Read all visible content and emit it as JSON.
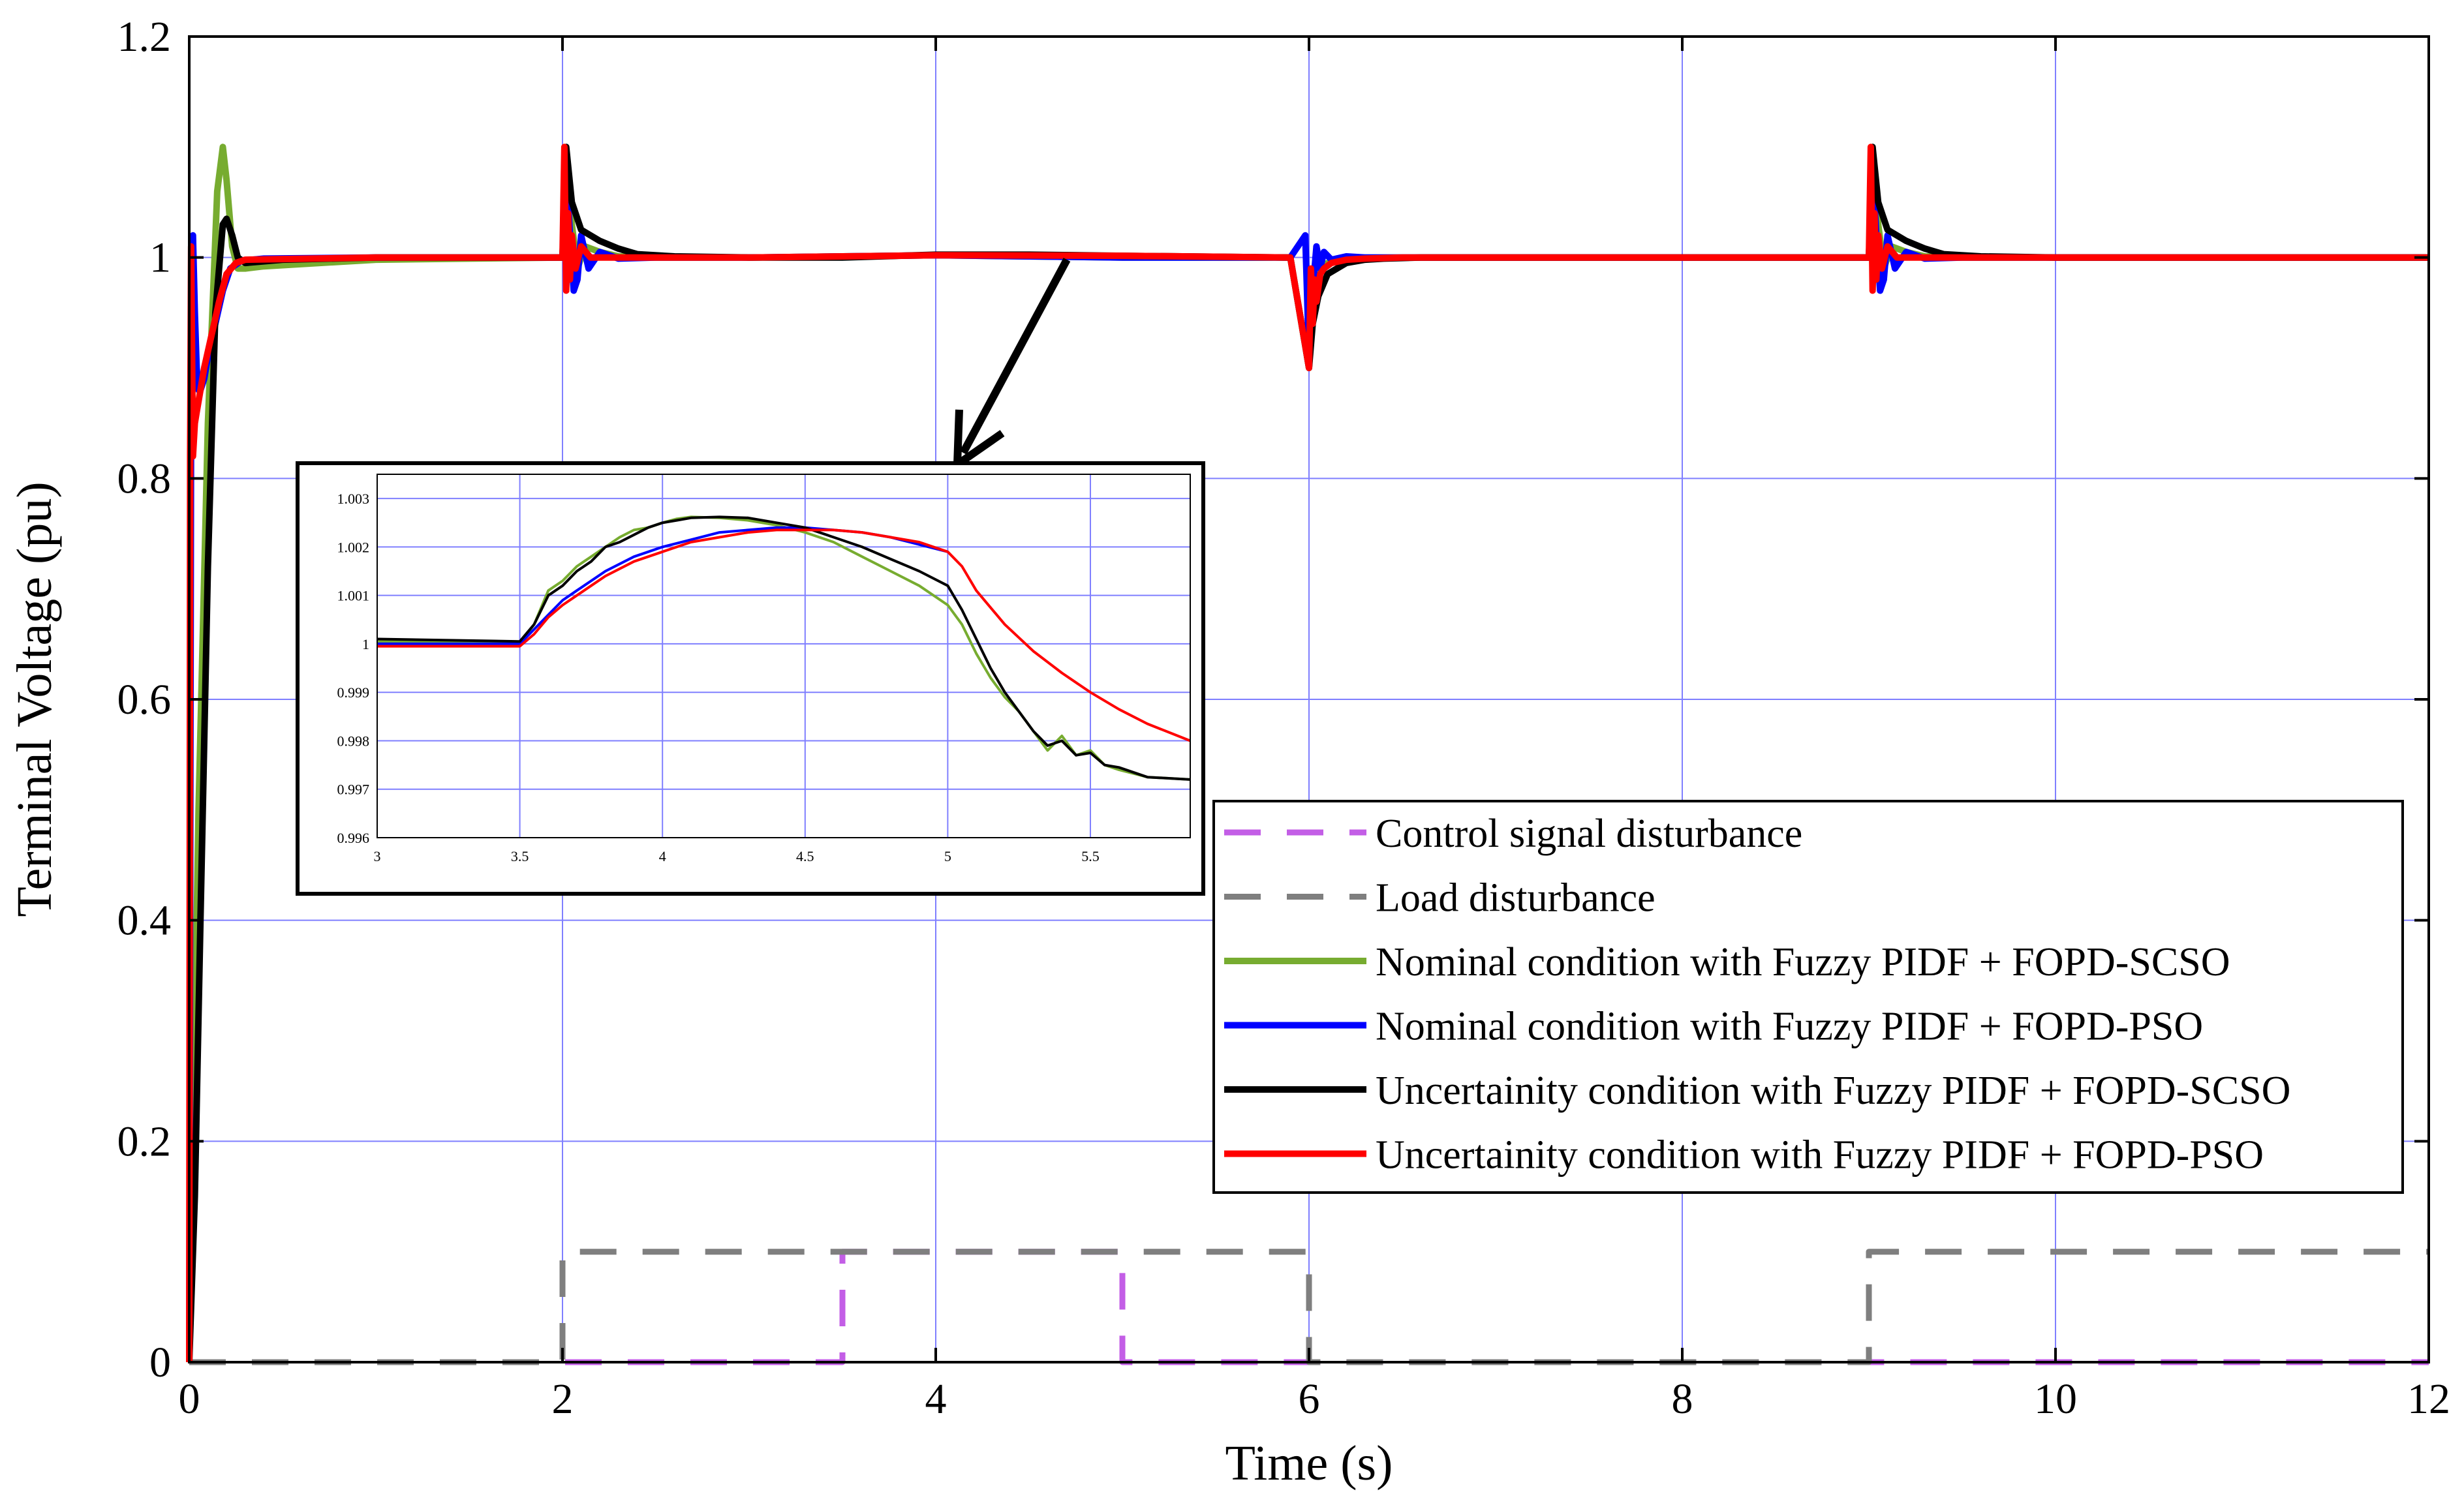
{
  "chart_data": {
    "type": "line",
    "xlabel": "Time (s)",
    "ylabel": "Terminal Voltage (pu)",
    "xlim": [
      0,
      12
    ],
    "ylim": [
      0,
      1.2
    ],
    "xticks": [
      0,
      2,
      4,
      6,
      8,
      10,
      12
    ],
    "xtick_labels": [
      "0",
      "2",
      "4",
      "6",
      "8",
      "10",
      "12"
    ],
    "yticks": [
      0,
      0.2,
      0.4,
      0.6,
      0.8,
      1,
      1.2
    ],
    "ytick_labels": [
      "0",
      "0.2",
      "0.4",
      "0.6",
      "0.8",
      "1",
      "1.2"
    ],
    "grid": true,
    "legend_position": "center-right",
    "series": [
      {
        "name": "Control  signal disturbance",
        "color": "#c35ee6",
        "style": "dashed",
        "x": [
          0,
          2,
          2,
          3.5,
          3.5,
          5,
          5,
          6,
          6,
          12
        ],
        "y": [
          0,
          0,
          0,
          0,
          0.1,
          0.1,
          0,
          0,
          0,
          0
        ]
      },
      {
        "name": "Load disturbance",
        "color": "#7f7f7f",
        "style": "dashed",
        "x": [
          0,
          2,
          2,
          6,
          6,
          9,
          9,
          12
        ],
        "y": [
          0,
          0,
          0.1,
          0.1,
          0,
          0,
          0.1,
          0.1
        ]
      },
      {
        "name": "Nominal condition with Fuzzy PIDF + FOPD-SCSO",
        "color": "#77ac30",
        "style": "solid",
        "x": [
          0,
          0.02,
          0.05,
          0.1,
          0.15,
          0.18,
          0.2,
          0.23,
          0.26,
          0.3,
          0.4,
          1,
          2,
          2.02,
          2.05,
          2.08,
          2.12,
          2.2,
          2.3,
          2.5,
          3,
          4,
          5,
          5.9,
          6,
          6.02,
          6.05,
          6.1,
          6.15,
          6.2,
          6.3,
          6.5,
          7,
          8,
          9,
          9.02,
          9.05,
          9.08,
          9.12,
          9.2,
          9.3,
          9.5,
          10,
          12
        ],
        "y": [
          0,
          0.2,
          0.5,
          0.85,
          1.06,
          1.1,
          1.07,
          1.01,
          0.99,
          0.99,
          0.992,
          0.998,
          1,
          1.09,
          1.03,
          0.99,
          1.01,
          1.005,
          1.001,
          1,
          1,
          1.002,
          1,
          1,
          0.9,
          0.96,
          0.985,
          0.995,
          0.999,
          1,
          1,
          1,
          1,
          1,
          1,
          1.09,
          1.03,
          0.99,
          1.01,
          1.005,
          1.001,
          1,
          1,
          1
        ]
      },
      {
        "name": "Nominal condition with Fuzzy PIDF + FOPD-PSO",
        "color": "#0000ff",
        "style": "solid",
        "x": [
          0,
          0.01,
          0.02,
          0.03,
          0.04,
          0.05,
          0.06,
          0.08,
          0.1,
          0.14,
          0.18,
          0.22,
          0.28,
          0.4,
          1,
          2,
          2.02,
          2.04,
          2.06,
          2.08,
          2.1,
          2.14,
          2.2,
          2.3,
          2.5,
          3,
          4,
          5,
          5.9,
          5.98,
          6,
          6.02,
          6.04,
          6.06,
          6.08,
          6.12,
          6.2,
          6.3,
          6.5,
          7,
          8,
          9,
          9.02,
          9.04,
          9.06,
          9.08,
          9.1,
          9.14,
          9.2,
          9.3,
          9.5,
          10,
          12
        ],
        "y": [
          0,
          0.88,
          1.02,
          0.95,
          0.9,
          0.88,
          0.88,
          0.89,
          0.91,
          0.94,
          0.97,
          0.99,
          0.997,
          0.999,
          1,
          1,
          1.08,
          1.02,
          0.97,
          0.98,
          1.02,
          0.99,
          1.005,
          0.999,
          1,
          1,
          1.002,
          1,
          1,
          1.02,
          0.91,
          0.97,
          1.01,
          0.99,
          1.005,
          0.998,
          1.001,
          1,
          1,
          1,
          1,
          1,
          1.08,
          1.02,
          0.97,
          0.98,
          1.02,
          0.99,
          1.005,
          0.999,
          1,
          1,
          1
        ]
      },
      {
        "name": "Uncertainity condition with Fuzzy PIDF + FOPD-SCSO",
        "color": "#000000",
        "style": "solid",
        "x": [
          0,
          0.03,
          0.06,
          0.1,
          0.14,
          0.18,
          0.2,
          0.23,
          0.26,
          0.3,
          0.5,
          1,
          2,
          2.02,
          2.05,
          2.1,
          2.2,
          2.3,
          2.4,
          2.6,
          3,
          3.5,
          4,
          4.5,
          5,
          5.9,
          6,
          6.02,
          6.05,
          6.1,
          6.2,
          6.3,
          6.4,
          6.6,
          7,
          8,
          9,
          9.02,
          9.05,
          9.1,
          9.2,
          9.3,
          9.4,
          9.6,
          10,
          12
        ],
        "y": [
          0,
          0.15,
          0.4,
          0.72,
          0.95,
          1.03,
          1.035,
          1.02,
          1.0,
          0.995,
          0.998,
          1,
          1,
          1.1,
          1.05,
          1.025,
          1.015,
          1.008,
          1.003,
          1.001,
          1,
          1,
          1.0025,
          1.0025,
          1.0015,
          1,
          0.9,
          0.94,
          0.965,
          0.985,
          0.995,
          0.998,
          0.999,
          1,
          1,
          1,
          1,
          1.1,
          1.05,
          1.025,
          1.015,
          1.008,
          1.003,
          1.001,
          1,
          1
        ]
      },
      {
        "name": "Uncertainity condition with Fuzzy PIDF + FOPD-PSO",
        "color": "#ff0000",
        "style": "solid",
        "x": [
          0,
          0.005,
          0.01,
          0.02,
          0.03,
          0.04,
          0.06,
          0.08,
          0.12,
          0.16,
          0.2,
          0.25,
          0.3,
          1,
          2,
          2.01,
          2.02,
          2.03,
          2.04,
          2.05,
          2.07,
          2.1,
          2.15,
          2.25,
          3,
          4,
          5,
          5.9,
          6,
          6.01,
          6.02,
          6.03,
          6.04,
          6.06,
          6.08,
          6.12,
          6.2,
          6.3,
          6.5,
          7,
          8,
          9,
          9.01,
          9.02,
          9.03,
          9.04,
          9.05,
          9.07,
          9.1,
          9.15,
          9.25,
          10,
          12
        ],
        "y": [
          0,
          0.82,
          1.01,
          0.82,
          0.85,
          0.86,
          0.88,
          0.9,
          0.93,
          0.96,
          0.985,
          0.995,
          0.998,
          1,
          1,
          1.1,
          0.97,
          1.04,
          0.98,
          1.02,
          0.99,
          1.01,
          1.0,
          1.0,
          1,
          1.002,
          1.0015,
          1,
          0.9,
          0.99,
          0.94,
          0.98,
          0.96,
          0.985,
          0.99,
          0.995,
          0.998,
          0.999,
          1,
          1,
          1,
          1,
          1.1,
          0.97,
          1.04,
          0.98,
          1.02,
          0.99,
          1.01,
          1.0,
          1.0,
          1,
          1
        ]
      }
    ],
    "inset": {
      "type": "line",
      "xlim": [
        3,
        5.85
      ],
      "ylim": [
        0.996,
        1.0035
      ],
      "xticks": [
        3,
        3.5,
        4,
        4.5,
        5,
        5.5
      ],
      "xtick_labels": [
        "3",
        "3.5",
        "4",
        "4.5",
        "5",
        "5.5"
      ],
      "yticks": [
        0.996,
        0.997,
        0.998,
        0.999,
        1,
        1.001,
        1.002,
        1.003
      ],
      "ytick_labels": [
        "0.996",
        "0.997",
        "0.998",
        "0.999",
        "1",
        "1.001",
        "1.002",
        "1.003"
      ],
      "grid": true,
      "series": [
        {
          "name": "Nominal condition with Fuzzy PIDF + FOPD-SCSO",
          "color": "#77ac30",
          "x": [
            3,
            3.5,
            3.55,
            3.6,
            3.65,
            3.7,
            3.75,
            3.8,
            3.85,
            3.9,
            3.95,
            4,
            4.05,
            4.1,
            4.2,
            4.3,
            4.4,
            4.5,
            4.6,
            4.7,
            4.8,
            4.9,
            5,
            5.05,
            5.1,
            5.15,
            5.2,
            5.25,
            5.3,
            5.35,
            5.4,
            5.45,
            5.5,
            5.55,
            5.6,
            5.7,
            5.85
          ],
          "y": [
            1.00005,
            1.0,
            1.0004,
            1.0011,
            1.0013,
            1.0016,
            1.0018,
            1.002,
            1.0022,
            1.00235,
            1.0024,
            1.0025,
            1.00258,
            1.00262,
            1.0026,
            1.00255,
            1.00245,
            1.0023,
            1.0021,
            1.0018,
            1.0015,
            1.0012,
            1.0008,
            1.0004,
            0.9998,
            0.9993,
            0.9989,
            0.9986,
            0.9982,
            0.9978,
            0.9981,
            0.9977,
            0.9978,
            0.9975,
            0.9974,
            0.99725,
            0.9972
          ]
        },
        {
          "name": "Nominal condition with Fuzzy PIDF + FOPD-PSO",
          "color": "#0000ff",
          "x": [
            3,
            3.5,
            3.55,
            3.6,
            3.65,
            3.7,
            3.75,
            3.8,
            3.9,
            4,
            4.1,
            4.2,
            4.3,
            4.4,
            4.5,
            4.6,
            4.7,
            4.8,
            4.9,
            5
          ],
          "y": [
            1.0,
            1.0,
            1.0003,
            1.0006,
            1.0009,
            1.0011,
            1.0013,
            1.0015,
            1.0018,
            1.002,
            1.00215,
            1.0023,
            1.00235,
            1.0024,
            1.0024,
            1.00235,
            1.0023,
            1.0022,
            1.00205,
            1.0019
          ]
        },
        {
          "name": "Uncertainity condition with Fuzzy PIDF + FOPD-SCSO",
          "color": "#000000",
          "x": [
            3,
            3.5,
            3.55,
            3.6,
            3.65,
            3.7,
            3.75,
            3.8,
            3.85,
            3.9,
            3.95,
            4,
            4.05,
            4.1,
            4.2,
            4.3,
            4.4,
            4.5,
            4.6,
            4.7,
            4.8,
            4.9,
            5,
            5.05,
            5.1,
            5.15,
            5.2,
            5.25,
            5.3,
            5.35,
            5.4,
            5.45,
            5.5,
            5.55,
            5.6,
            5.7,
            5.85
          ],
          "y": [
            1.0001,
            1.00005,
            1.0004,
            1.001,
            1.0012,
            1.0015,
            1.0017,
            1.002,
            1.0021,
            1.00225,
            1.0024,
            1.0025,
            1.00255,
            1.0026,
            1.00262,
            1.0026,
            1.0025,
            1.0024,
            1.0022,
            1.002,
            1.00175,
            1.0015,
            1.0012,
            1.0007,
            1.0001,
            0.9995,
            0.999,
            0.9986,
            0.9982,
            0.9979,
            0.998,
            0.9977,
            0.99775,
            0.9975,
            0.99745,
            0.99725,
            0.9972
          ]
        },
        {
          "name": "Uncertainity condition with Fuzzy PIDF + FOPD-PSO",
          "color": "#ff0000",
          "x": [
            3,
            3.5,
            3.55,
            3.6,
            3.65,
            3.7,
            3.75,
            3.8,
            3.9,
            4,
            4.1,
            4.2,
            4.3,
            4.4,
            4.5,
            4.6,
            4.7,
            4.8,
            4.9,
            5,
            5.05,
            5.1,
            5.2,
            5.3,
            5.4,
            5.5,
            5.6,
            5.7,
            5.85
          ],
          "y": [
            0.99995,
            0.99995,
            1.0002,
            1.00055,
            1.0008,
            1.001,
            1.0012,
            1.0014,
            1.0017,
            1.0019,
            1.0021,
            1.0022,
            1.0023,
            1.00235,
            1.00235,
            1.00235,
            1.0023,
            1.0022,
            1.0021,
            1.0019,
            1.0016,
            1.0011,
            1.0004,
            0.99985,
            0.9994,
            0.999,
            0.99865,
            0.99835,
            0.998
          ]
        }
      ]
    }
  }
}
